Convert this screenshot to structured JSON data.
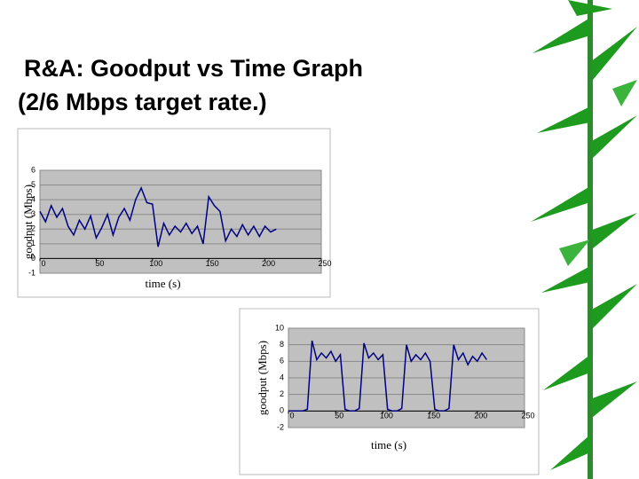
{
  "title": [
    "R&A: Goodput vs Time Graph",
    "(2/6 Mbps target rate.)"
  ],
  "chart_data": [
    {
      "type": "line",
      "xlabel": "time (s)",
      "ylabel": "goodput (Mbps)",
      "color": "#000080",
      "grid": true,
      "xlim": [
        0,
        250
      ],
      "xticks": [
        0,
        50,
        100,
        150,
        200,
        250
      ],
      "ylim": [
        -1,
        6
      ],
      "yticks": [
        -1,
        0,
        1,
        2,
        3,
        4,
        5,
        6
      ],
      "x": [
        0,
        5,
        10,
        15,
        20,
        25,
        30,
        35,
        40,
        45,
        50,
        55,
        60,
        65,
        70,
        75,
        80,
        85,
        90,
        95,
        100,
        105,
        110,
        115,
        120,
        125,
        130,
        135,
        140,
        145,
        150,
        155,
        160,
        165,
        170,
        175,
        180,
        185,
        190,
        195,
        200,
        205,
        210
      ],
      "values": [
        3.2,
        2.5,
        3.6,
        2.8,
        3.4,
        2.2,
        1.6,
        2.6,
        2.0,
        2.9,
        1.4,
        2.1,
        3.0,
        1.6,
        2.8,
        3.4,
        2.6,
        4.0,
        4.8,
        3.8,
        3.7,
        0.8,
        2.4,
        1.6,
        2.2,
        1.8,
        2.4,
        1.7,
        2.2,
        1.0,
        4.2,
        3.6,
        3.2,
        1.2,
        2.0,
        1.5,
        2.3,
        1.6,
        2.2,
        1.5,
        2.2,
        1.8,
        2.0
      ]
    },
    {
      "type": "line",
      "xlabel": "time (s)",
      "ylabel": "goodput (Mbps)",
      "color": "#000080",
      "grid": true,
      "xlim": [
        0,
        250
      ],
      "xticks": [
        0,
        50,
        100,
        150,
        200,
        250
      ],
      "ylim": [
        -2,
        10
      ],
      "yticks": [
        -2,
        0,
        2,
        4,
        6,
        8,
        10
      ],
      "x": [
        0,
        5,
        10,
        15,
        20,
        25,
        30,
        35,
        40,
        45,
        50,
        55,
        60,
        65,
        70,
        75,
        80,
        85,
        90,
        95,
        100,
        105,
        110,
        115,
        120,
        125,
        130,
        135,
        140,
        145,
        150,
        155,
        160,
        165,
        170,
        175,
        180,
        185,
        190,
        195,
        200,
        205,
        210
      ],
      "values": [
        0,
        0,
        0,
        0,
        0.2,
        8.5,
        6.2,
        7.0,
        6.4,
        7.2,
        6.0,
        6.8,
        0.2,
        0,
        0,
        0.3,
        8.2,
        6.4,
        7.0,
        6.2,
        6.8,
        0.2,
        0,
        0,
        0.3,
        8.0,
        6.0,
        6.8,
        6.2,
        7.0,
        6.0,
        0.2,
        0,
        0,
        0.3,
        8.0,
        6.2,
        7.0,
        5.6,
        6.6,
        6.0,
        7.0,
        6.2
      ]
    }
  ]
}
